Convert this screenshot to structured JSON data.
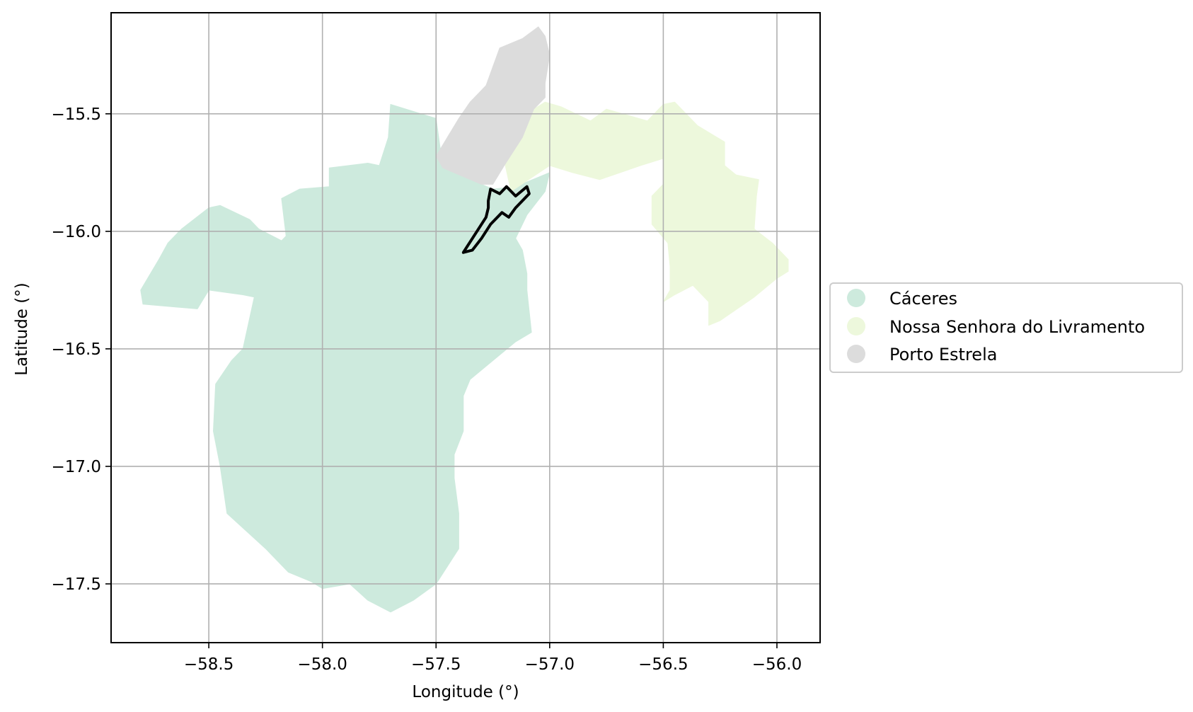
{
  "chart_data": {
    "type": "map",
    "xlabel": "Longitude (°)",
    "ylabel": "Latitude (°)",
    "xlim": [
      -58.93,
      -55.81
    ],
    "ylim": [
      -17.75,
      -15.07
    ],
    "grid": true,
    "xticks": [
      -58.5,
      -58.0,
      -57.5,
      -57.0,
      -56.5,
      -56.0
    ],
    "yticks": [
      -15.5,
      -16.0,
      -16.5,
      -17.0,
      -17.5
    ],
    "xtick_labels": [
      "−58.5",
      "−58.0",
      "−57.5",
      "−57.0",
      "−56.5",
      "−56.0"
    ],
    "ytick_labels": [
      "−15.5",
      "−16.0",
      "−16.5",
      "−17.0",
      "−17.5"
    ],
    "legend_position": "center-right",
    "regions": [
      {
        "name": "Cáceres",
        "color": "#cdeadd",
        "polygon": [
          [
            -57.7,
            -15.46
          ],
          [
            -57.5,
            -15.52
          ],
          [
            -57.47,
            -15.73
          ],
          [
            -57.3,
            -15.8
          ],
          [
            -57.25,
            -15.82
          ],
          [
            -57.15,
            -15.81
          ],
          [
            -57.0,
            -15.75
          ],
          [
            -57.02,
            -15.83
          ],
          [
            -57.1,
            -15.93
          ],
          [
            -57.15,
            -16.03
          ],
          [
            -57.12,
            -16.08
          ],
          [
            -57.1,
            -16.18
          ],
          [
            -57.1,
            -16.25
          ],
          [
            -57.08,
            -16.43
          ],
          [
            -57.15,
            -16.47
          ],
          [
            -57.25,
            -16.55
          ],
          [
            -57.35,
            -16.63
          ],
          [
            -57.38,
            -16.7
          ],
          [
            -57.38,
            -16.85
          ],
          [
            -57.42,
            -16.95
          ],
          [
            -57.42,
            -17.05
          ],
          [
            -57.4,
            -17.2
          ],
          [
            -57.4,
            -17.35
          ],
          [
            -57.5,
            -17.5
          ],
          [
            -57.6,
            -17.57
          ],
          [
            -57.7,
            -17.62
          ],
          [
            -57.8,
            -17.57
          ],
          [
            -57.88,
            -17.5
          ],
          [
            -58.0,
            -17.52
          ],
          [
            -58.05,
            -17.49
          ],
          [
            -58.15,
            -17.45
          ],
          [
            -58.25,
            -17.35
          ],
          [
            -58.42,
            -17.2
          ],
          [
            -58.45,
            -17.0
          ],
          [
            -58.48,
            -16.85
          ],
          [
            -58.47,
            -16.65
          ],
          [
            -58.4,
            -16.55
          ],
          [
            -58.35,
            -16.5
          ],
          [
            -58.3,
            -16.28
          ],
          [
            -58.35,
            -16.27
          ],
          [
            -58.5,
            -16.25
          ],
          [
            -58.55,
            -16.33
          ],
          [
            -58.79,
            -16.31
          ],
          [
            -58.8,
            -16.25
          ],
          [
            -58.72,
            -16.12
          ],
          [
            -58.68,
            -16.05
          ],
          [
            -58.62,
            -15.99
          ],
          [
            -58.5,
            -15.9
          ],
          [
            -58.45,
            -15.89
          ],
          [
            -58.32,
            -15.95
          ],
          [
            -58.28,
            -15.99
          ],
          [
            -58.22,
            -16.02
          ],
          [
            -58.18,
            -16.04
          ],
          [
            -58.16,
            -16.02
          ],
          [
            -58.18,
            -15.86
          ],
          [
            -58.1,
            -15.82
          ],
          [
            -57.97,
            -15.81
          ],
          [
            -57.97,
            -15.73
          ],
          [
            -57.8,
            -15.71
          ],
          [
            -57.75,
            -15.72
          ],
          [
            -57.71,
            -15.6
          ],
          [
            -57.7,
            -15.46
          ]
        ]
      },
      {
        "name": "Nossa Senhora do Livramento",
        "color": "#edf8dc",
        "polygon": [
          [
            -57.17,
            -15.83
          ],
          [
            -57.0,
            -15.72
          ],
          [
            -56.9,
            -15.75
          ],
          [
            -56.78,
            -15.78
          ],
          [
            -56.6,
            -15.72
          ],
          [
            -56.5,
            -15.69
          ],
          [
            -56.5,
            -15.8
          ],
          [
            -56.55,
            -15.85
          ],
          [
            -56.55,
            -15.97
          ],
          [
            -56.48,
            -16.05
          ],
          [
            -56.47,
            -16.15
          ],
          [
            -56.47,
            -16.25
          ],
          [
            -56.5,
            -16.3
          ],
          [
            -56.45,
            -16.27
          ],
          [
            -56.37,
            -16.23
          ],
          [
            -56.3,
            -16.3
          ],
          [
            -56.3,
            -16.4
          ],
          [
            -56.25,
            -16.38
          ],
          [
            -56.1,
            -16.28
          ],
          [
            -56.0,
            -16.2
          ],
          [
            -55.95,
            -16.17
          ],
          [
            -55.95,
            -16.12
          ],
          [
            -56.02,
            -16.05
          ],
          [
            -56.1,
            -15.99
          ],
          [
            -56.09,
            -15.85
          ],
          [
            -56.08,
            -15.78
          ],
          [
            -56.18,
            -15.76
          ],
          [
            -56.23,
            -15.72
          ],
          [
            -56.23,
            -15.62
          ],
          [
            -56.35,
            -15.55
          ],
          [
            -56.45,
            -15.45
          ],
          [
            -56.5,
            -15.46
          ],
          [
            -56.57,
            -15.53
          ],
          [
            -56.75,
            -15.48
          ],
          [
            -56.82,
            -15.53
          ],
          [
            -56.95,
            -15.47
          ],
          [
            -57.02,
            -15.45
          ],
          [
            -57.07,
            -15.48
          ],
          [
            -57.12,
            -15.58
          ],
          [
            -57.2,
            -15.7
          ],
          [
            -57.17,
            -15.83
          ]
        ]
      },
      {
        "name": "Porto Estrela",
        "color": "#dcdcdc",
        "polygon": [
          [
            -57.05,
            -15.13
          ],
          [
            -57.02,
            -15.17
          ],
          [
            -57.0,
            -15.25
          ],
          [
            -57.02,
            -15.37
          ],
          [
            -57.02,
            -15.43
          ],
          [
            -57.07,
            -15.48
          ],
          [
            -57.12,
            -15.6
          ],
          [
            -57.2,
            -15.72
          ],
          [
            -57.25,
            -15.8
          ],
          [
            -57.3,
            -15.8
          ],
          [
            -57.47,
            -15.73
          ],
          [
            -57.5,
            -15.68
          ],
          [
            -57.45,
            -15.6
          ],
          [
            -57.4,
            -15.52
          ],
          [
            -57.35,
            -15.45
          ],
          [
            -57.28,
            -15.38
          ],
          [
            -57.25,
            -15.3
          ],
          [
            -57.22,
            -15.22
          ],
          [
            -57.12,
            -15.18
          ],
          [
            -57.05,
            -15.13
          ]
        ]
      }
    ],
    "highlight_outline": {
      "color": "#000000",
      "polygon": [
        [
          -57.38,
          -16.09
        ],
        [
          -57.32,
          -16.0
        ],
        [
          -57.28,
          -15.94
        ],
        [
          -57.27,
          -15.9
        ],
        [
          -57.27,
          -15.87
        ],
        [
          -57.26,
          -15.82
        ],
        [
          -57.22,
          -15.84
        ],
        [
          -57.19,
          -15.81
        ],
        [
          -57.15,
          -15.85
        ],
        [
          -57.1,
          -15.81
        ],
        [
          -57.09,
          -15.84
        ],
        [
          -57.15,
          -15.9
        ],
        [
          -57.18,
          -15.94
        ],
        [
          -57.21,
          -15.92
        ],
        [
          -57.26,
          -15.97
        ],
        [
          -57.3,
          -16.03
        ],
        [
          -57.34,
          -16.08
        ],
        [
          -57.38,
          -16.09
        ]
      ]
    }
  }
}
